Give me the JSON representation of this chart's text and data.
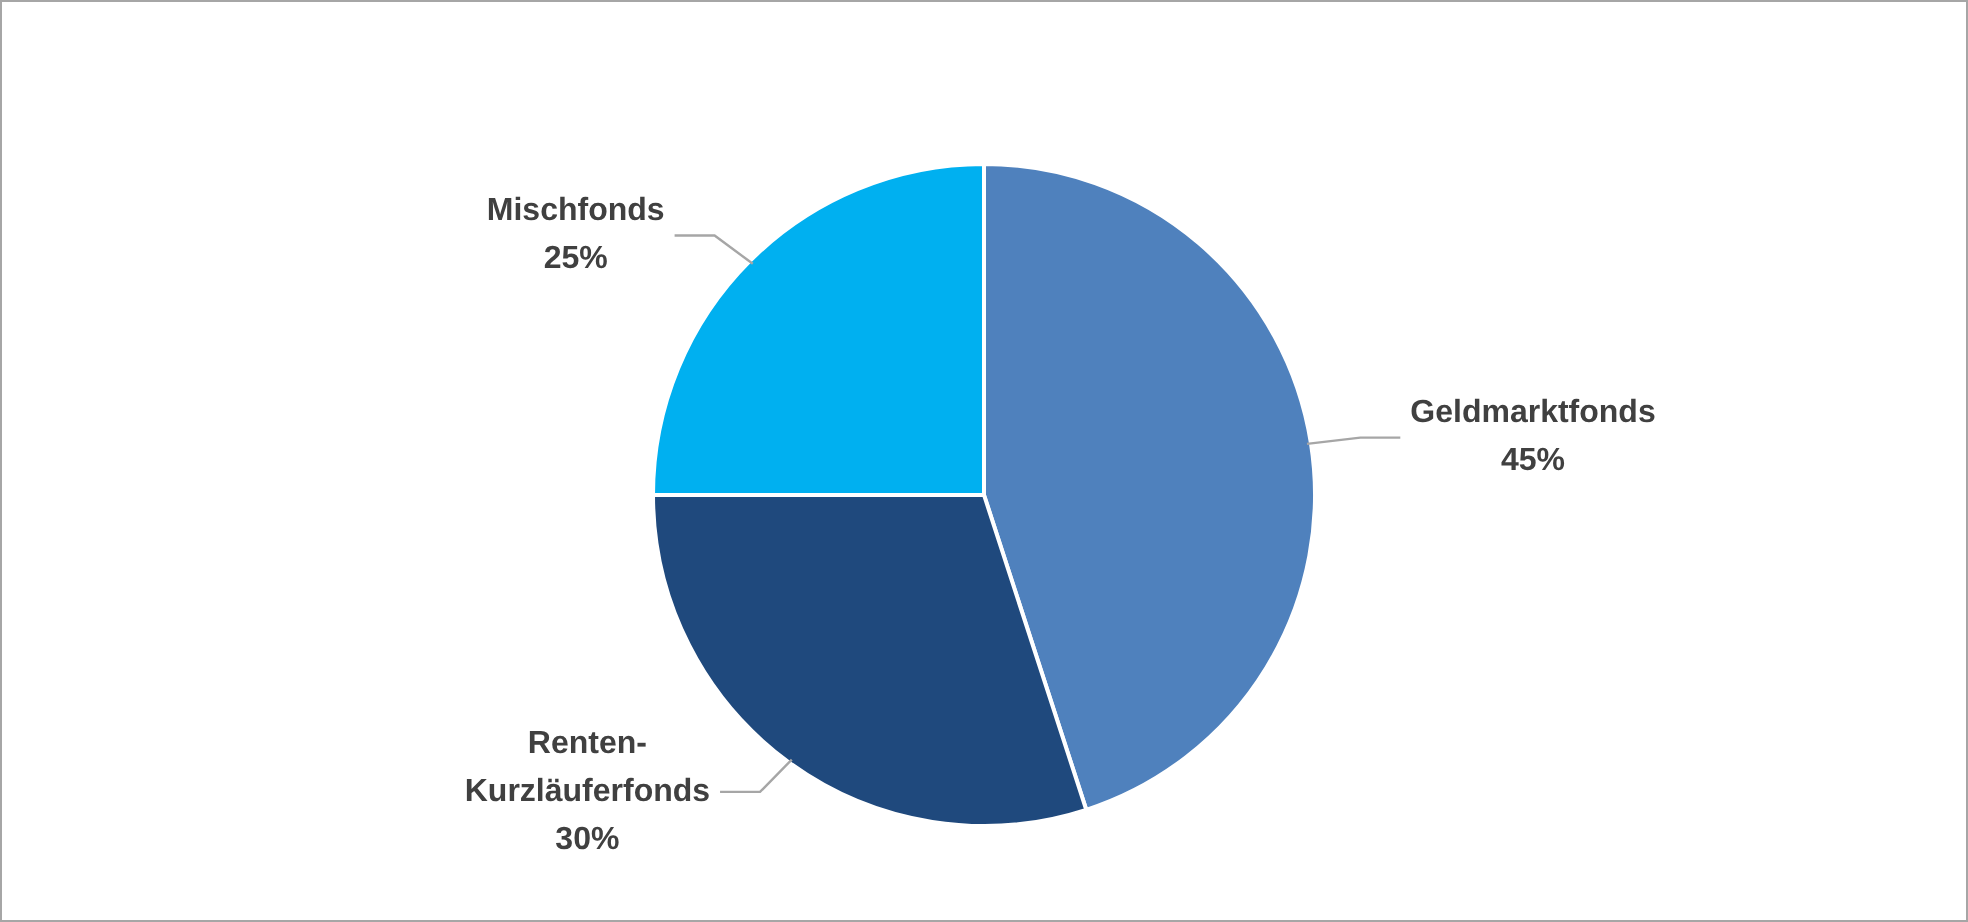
{
  "chart_data": {
    "type": "pie",
    "categories": [
      "Geldmarktfonds",
      "Renten-Kurzläuferfonds",
      "Mischfonds"
    ],
    "values": [
      45,
      30,
      25
    ],
    "value_labels": [
      "45%",
      "30%",
      "25%"
    ],
    "colors": [
      "#4f81bd",
      "#1f497d",
      "#00b0f0"
    ],
    "legend": false
  }
}
